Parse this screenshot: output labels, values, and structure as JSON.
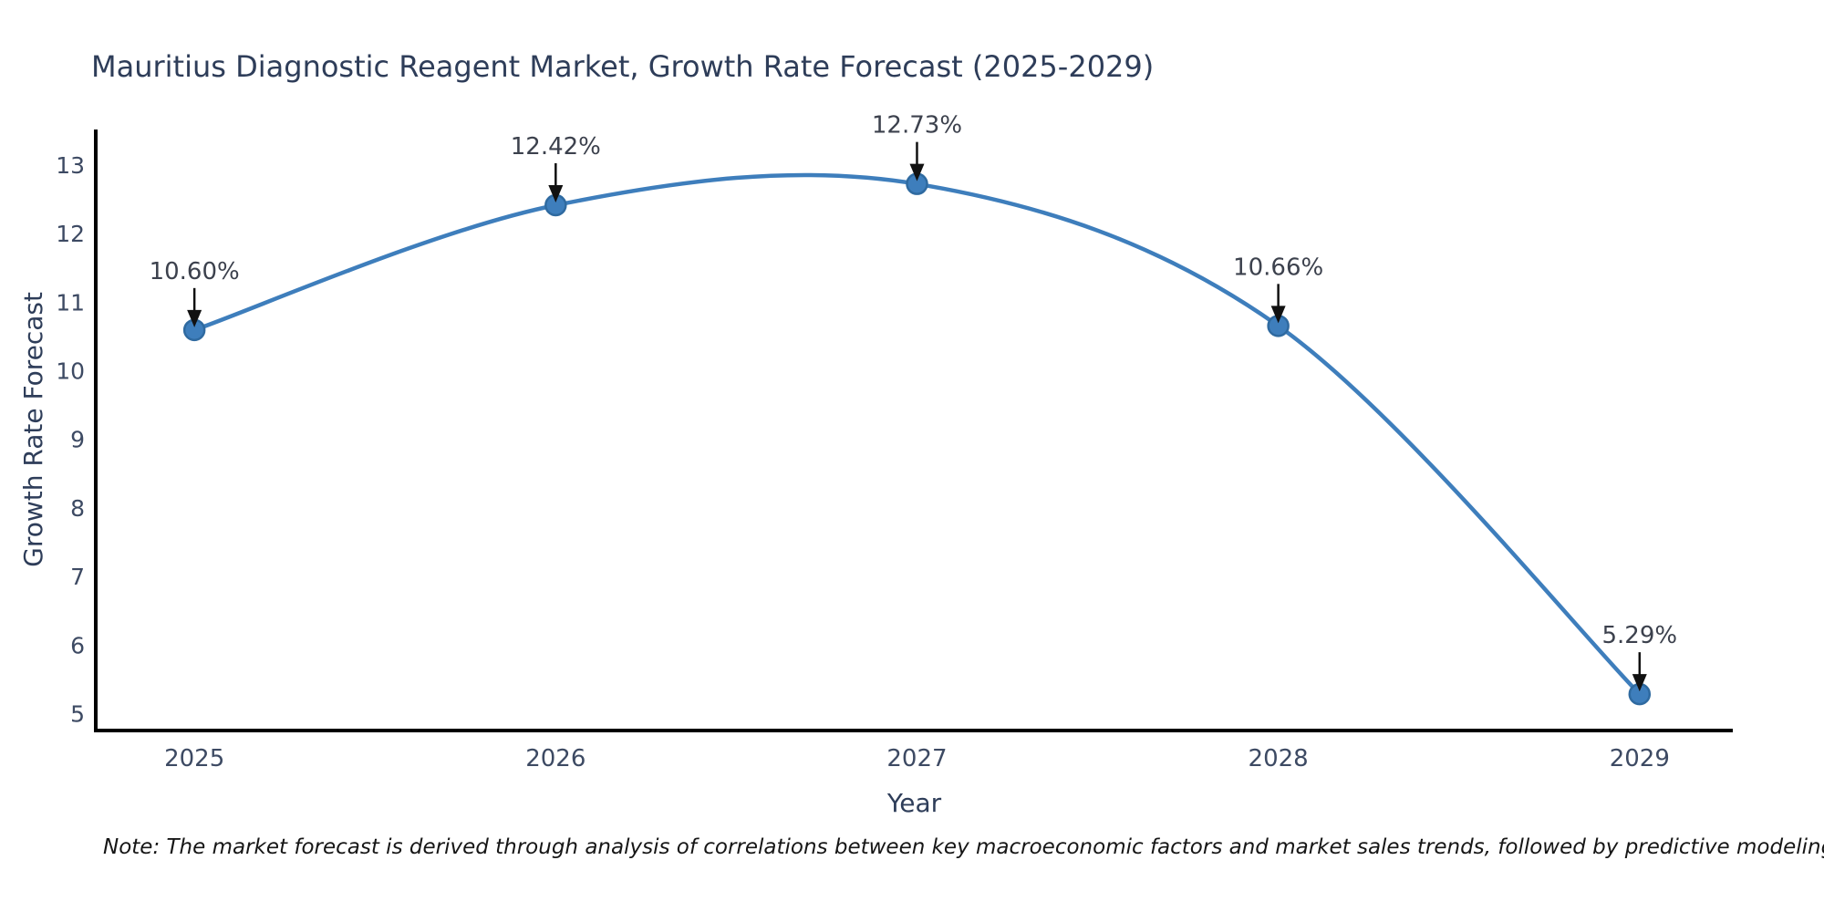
{
  "title": "Mauritius Diagnostic Reagent Market, Growth Rate Forecast (2025-2029)",
  "note": "Note: The market forecast is derived through analysis of correlations between key macroeconomic factors and market sales trends, followed by predictive modeling to project future sales",
  "colors": {
    "line": "#3e7ebc",
    "marker_fill": "#3e7ebc",
    "marker_edge": "#2f6aa0",
    "axis_spine": "#000000",
    "tick_text": "#3d4a63",
    "annotation_text": "#3c414d",
    "annotation_arrow": "#111111",
    "title_text": "#2e3d59",
    "background": "#ffffff"
  },
  "chart_data": {
    "type": "line",
    "title": "Mauritius Diagnostic Reagent Market, Growth Rate Forecast (2025-2029)",
    "xlabel": "Year",
    "ylabel": "Growth Rate Forecast",
    "x": [
      2025,
      2026,
      2027,
      2028,
      2029
    ],
    "categories": [
      "2025",
      "2026",
      "2027",
      "2028",
      "2029"
    ],
    "series": [
      {
        "name": "Growth Rate Forecast",
        "values": [
          10.6,
          12.42,
          12.73,
          10.66,
          5.29
        ],
        "point_labels": [
          "10.60%",
          "12.42%",
          "12.73%",
          "10.66%",
          "5.29%"
        ]
      }
    ],
    "yticks": [
      5,
      6,
      7,
      8,
      9,
      10,
      11,
      12,
      13
    ],
    "ylim": [
      4.76,
      13.55
    ],
    "xlim": [
      2024.727,
      2029.258
    ],
    "grid": false,
    "legend_position": "none",
    "line_shape": "spline",
    "marker": "circle"
  }
}
